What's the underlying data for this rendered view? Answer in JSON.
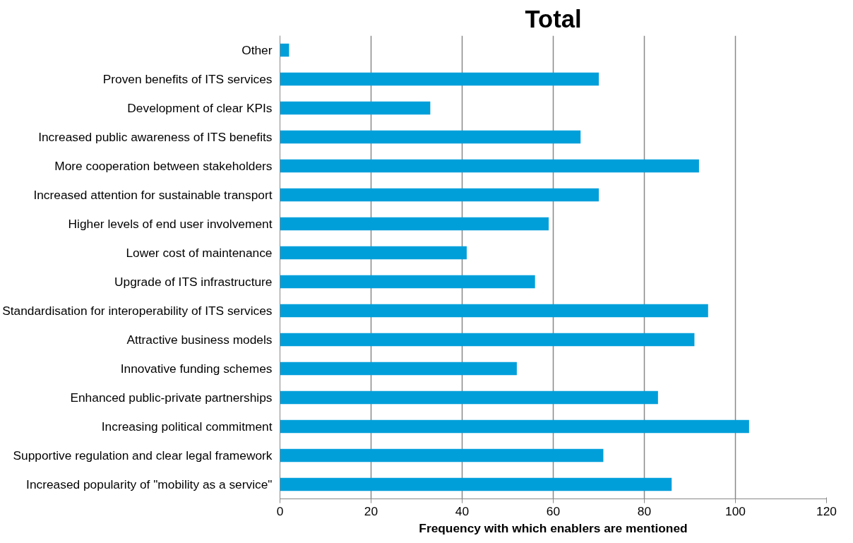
{
  "chart_data": {
    "type": "bar",
    "orientation": "horizontal",
    "title": "Total",
    "xlabel": "Frequency with which enablers are mentioned",
    "categories": [
      "Other",
      "Proven benefits of ITS services",
      "Development of clear KPIs",
      "Increased public awareness of ITS benefits",
      "More cooperation between stakeholders",
      "Increased attention for sustainable transport",
      "Higher levels of end user involvement",
      "Lower cost of maintenance",
      "Upgrade of ITS infrastructure",
      "Standardisation for interoperability of ITS services",
      "Attractive business models",
      "Innovative funding schemes",
      "Enhanced public-private partnerships",
      "Increasing political commitment",
      "Supportive regulation and clear legal framework",
      "Increased popularity of \"mobility as a service\""
    ],
    "values": [
      2,
      70,
      33,
      66,
      92,
      70,
      59,
      41,
      56,
      94,
      91,
      52,
      83,
      103,
      71,
      86
    ],
    "color": "#009fda",
    "xlim": [
      0,
      120
    ],
    "xticks": [
      0,
      20,
      40,
      60,
      80,
      100,
      120
    ],
    "grid": "x"
  }
}
